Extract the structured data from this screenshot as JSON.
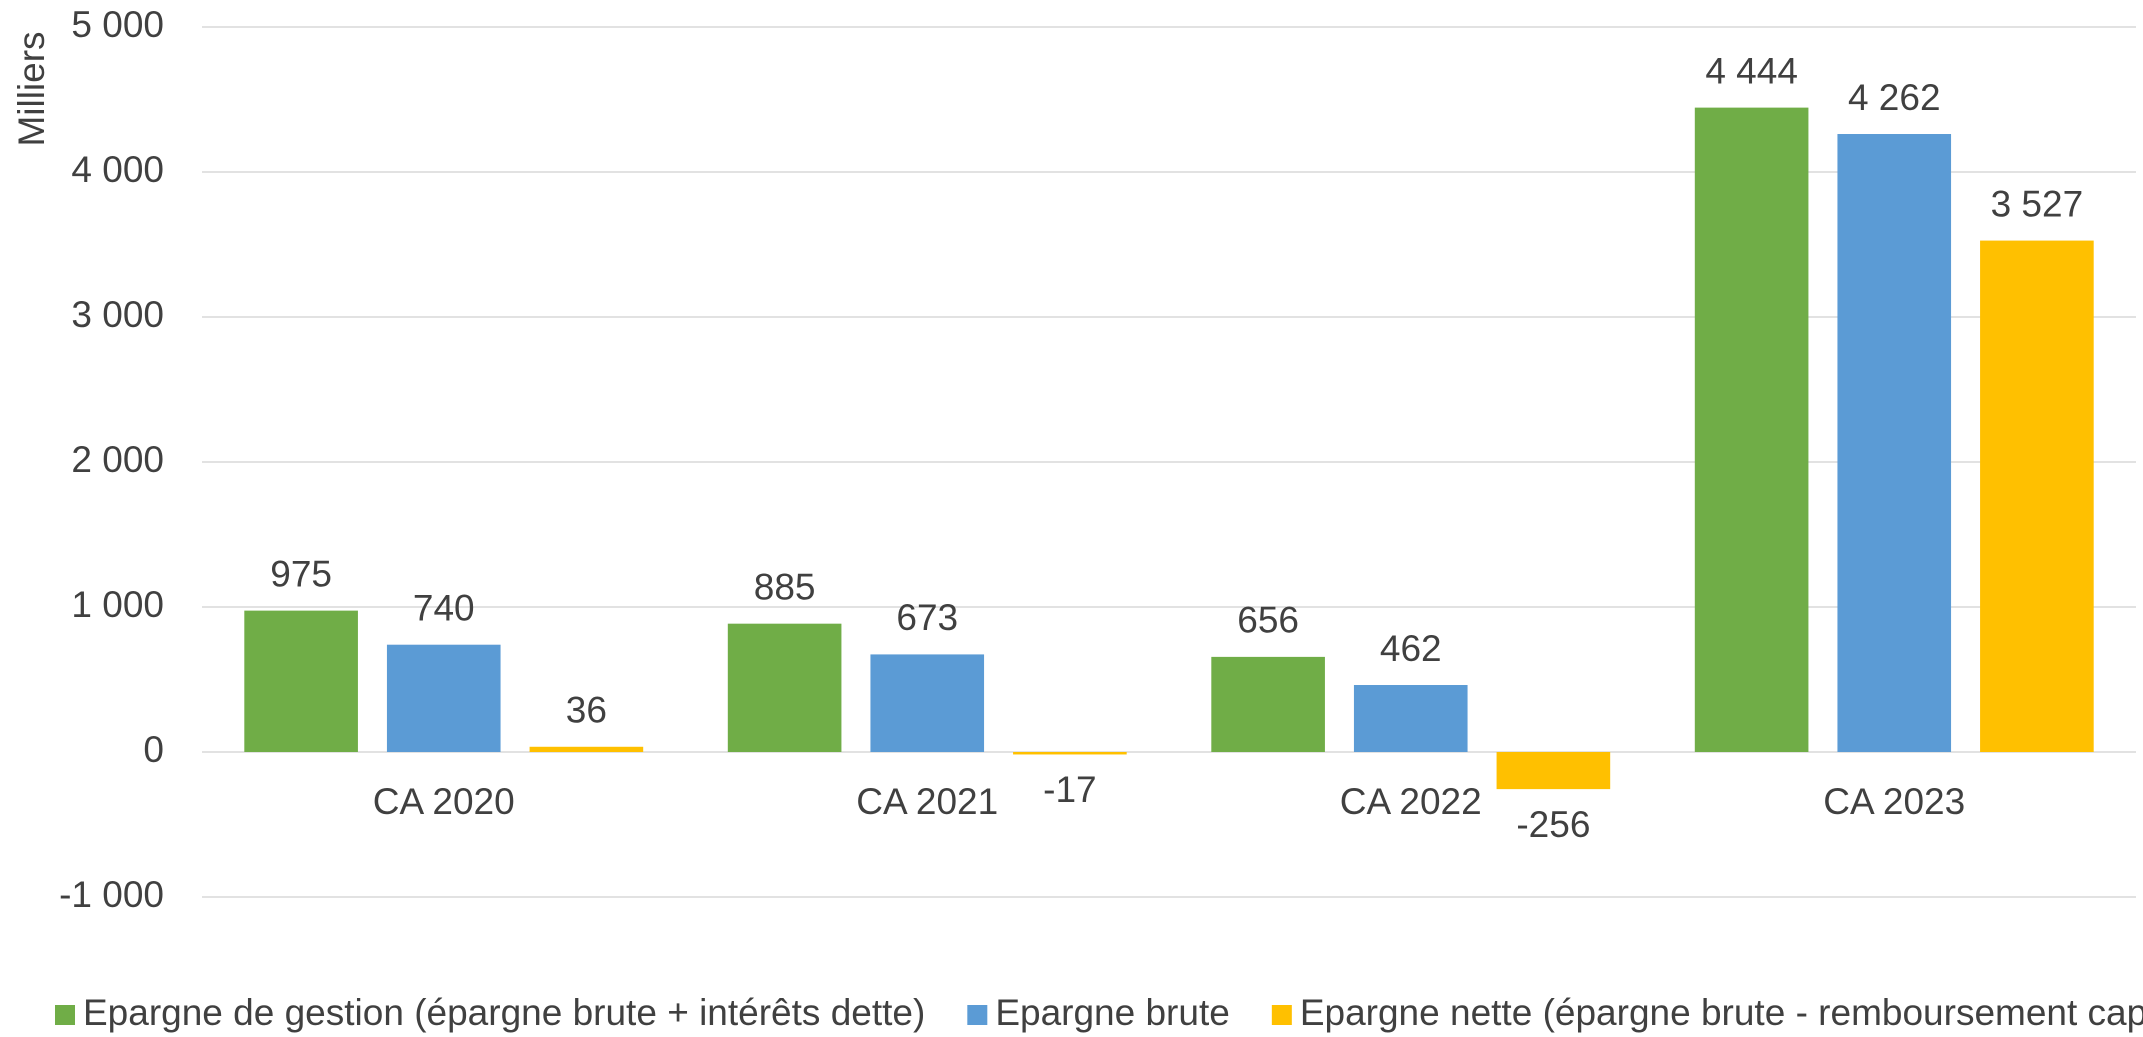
{
  "chart_data": {
    "type": "bar",
    "y_label": "Milliers",
    "categories": [
      "CA 2020",
      "CA 2021",
      "CA 2022",
      "CA 2023"
    ],
    "series": [
      {
        "name": "Epargne de gestion (épargne brute + intérêts dette)",
        "color": "#70ad47",
        "values": [
          975,
          885,
          656,
          4444
        ],
        "value_labels": [
          "975",
          "885",
          "656",
          "4 444"
        ]
      },
      {
        "name": "Epargne brute",
        "color": "#5b9bd5",
        "values": [
          740,
          673,
          462,
          4262
        ],
        "value_labels": [
          "740",
          "673",
          "462",
          "4 262"
        ]
      },
      {
        "name": "Epargne nette (épargne brute - remboursement capital)",
        "color": "#ffc000",
        "values": [
          36,
          -17,
          -256,
          3527
        ],
        "value_labels": [
          "36",
          "-17",
          "-256",
          "3 527"
        ]
      }
    ],
    "ylim": [
      -1000,
      5000
    ],
    "yticks": [
      {
        "value": -1000,
        "label": "-1 000"
      },
      0,
      {
        "value": 1000,
        "label": "1 000"
      },
      {
        "value": 2000,
        "label": "2 000"
      },
      {
        "value": 3000,
        "label": "3 000"
      },
      {
        "value": 4000,
        "label": "4 000"
      },
      {
        "value": 5000,
        "label": "5 000"
      }
    ],
    "grid": true,
    "legend": "bottom"
  }
}
